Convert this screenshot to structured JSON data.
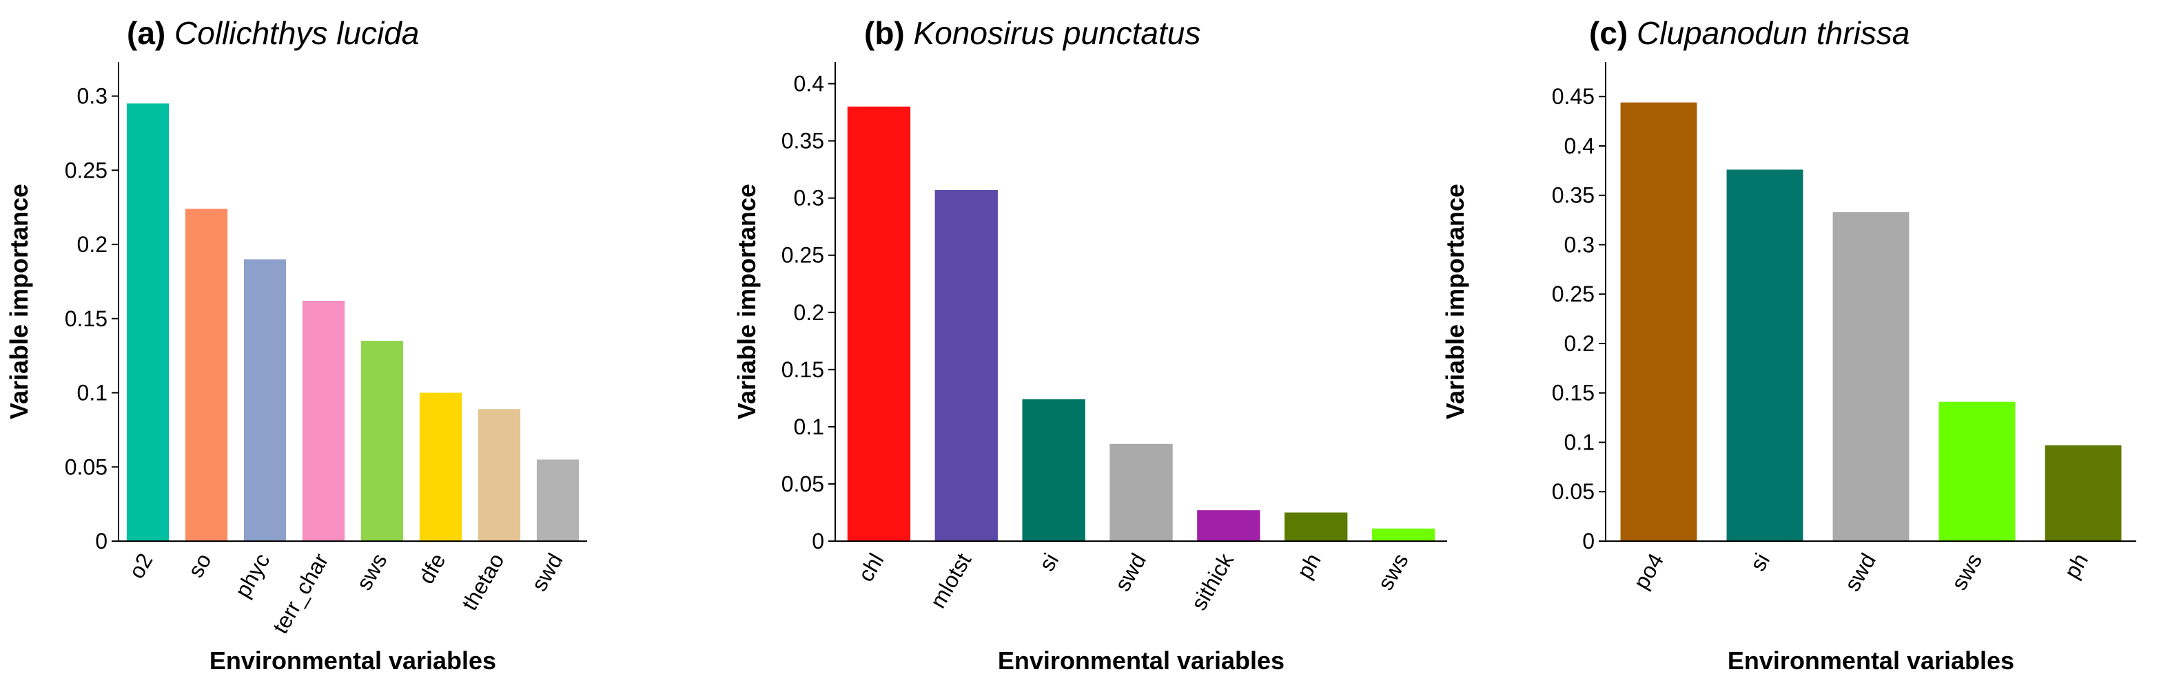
{
  "chart_data": [
    {
      "type": "bar",
      "panel": "(a)",
      "title": "Collichthys lucida",
      "xlabel": "Environmental variables",
      "ylabel": "Variable importance",
      "categories": [
        "o2",
        "so",
        "phyc",
        "terr_char",
        "sws",
        "dfe",
        "thetao",
        "swd"
      ],
      "values": [
        0.295,
        0.224,
        0.19,
        0.162,
        0.135,
        0.1,
        0.089,
        0.055
      ],
      "colors": [
        "#00bfa0",
        "#fc8d62",
        "#8da0cb",
        "#f78fc0",
        "#8fd44a",
        "#ffd700",
        "#e5c494",
        "#b3b3b3"
      ],
      "ylim": [
        0,
        0.323
      ],
      "yticks": [
        0,
        0.05,
        0.1,
        0.15,
        0.2,
        0.25,
        0.3
      ]
    },
    {
      "type": "bar",
      "panel": "(b)",
      "title": "Konosirus punctatus",
      "xlabel": "Environmental variables",
      "ylabel": "Variable importance",
      "categories": [
        "chl",
        "mlotst",
        "si",
        "swd",
        "sithick",
        "ph",
        "sws"
      ],
      "values": [
        0.38,
        0.307,
        0.124,
        0.085,
        0.027,
        0.025,
        0.011
      ],
      "colors": [
        "#ff1010",
        "#5b4aa8",
        "#007566",
        "#aaaaaa",
        "#a020a8",
        "#5b7a00",
        "#70ff00"
      ],
      "ylim": [
        0,
        0.419
      ],
      "yticks": [
        0,
        0.05,
        0.1,
        0.15,
        0.2,
        0.25,
        0.3,
        0.35,
        0.4
      ]
    },
    {
      "type": "bar",
      "panel": "(c)",
      "title": "Clupanodun thrissa",
      "xlabel": "Environmental variables",
      "ylabel": "Variable importance",
      "categories": [
        "po4",
        "si",
        "swd",
        "sws",
        "ph"
      ],
      "values": [
        0.444,
        0.376,
        0.333,
        0.141,
        0.097
      ],
      "colors": [
        "#a65e00",
        "#00756a",
        "#aaaaaa",
        "#6aff00",
        "#607700"
      ],
      "ylim": [
        0,
        0.485
      ],
      "yticks": [
        0,
        0.05,
        0.1,
        0.15,
        0.2,
        0.25,
        0.3,
        0.35,
        0.4,
        0.45
      ]
    }
  ]
}
